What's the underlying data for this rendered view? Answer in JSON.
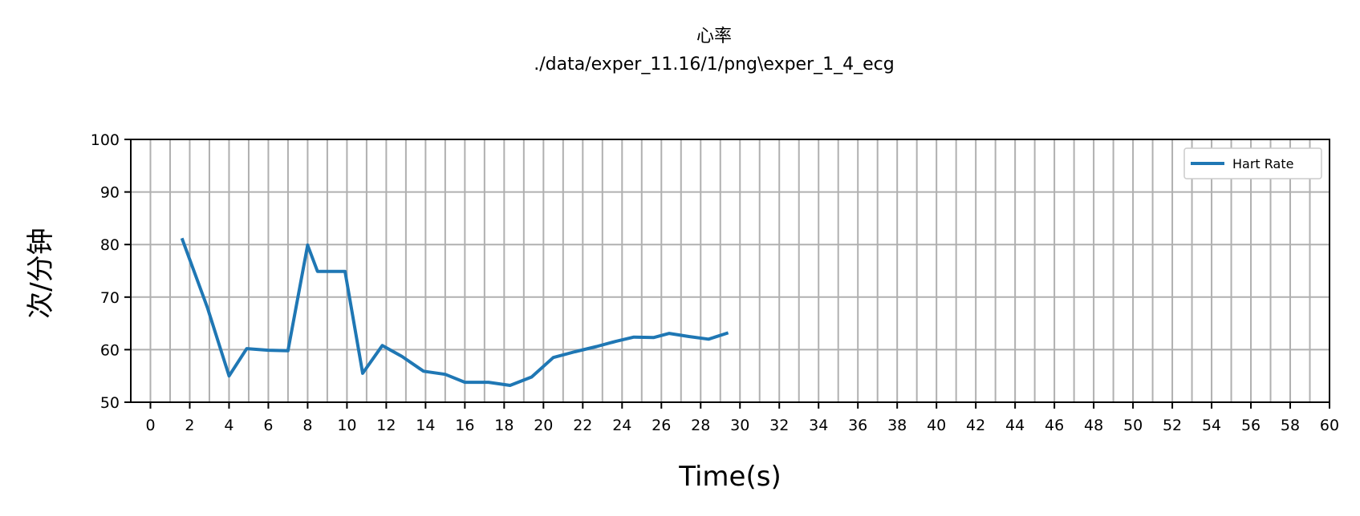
{
  "chart_data": {
    "type": "line",
    "title": "心率",
    "subtitle": "./data/exper_11.16/1/png\\exper_1_4_ecg",
    "xlabel": "Time(s)",
    "ylabel": "次/分钟",
    "xlim": [
      -1,
      60
    ],
    "ylim": [
      50,
      100
    ],
    "xticks": [
      0,
      2,
      4,
      6,
      8,
      10,
      12,
      14,
      16,
      18,
      20,
      22,
      24,
      26,
      28,
      30,
      32,
      34,
      36,
      38,
      40,
      42,
      44,
      46,
      48,
      50,
      52,
      54,
      56,
      58,
      60
    ],
    "yticks": [
      50,
      60,
      70,
      80,
      90,
      100
    ],
    "grid": true,
    "legend_position": "top-right",
    "series": [
      {
        "name": "Hart Rate",
        "color": "#1f77b4",
        "x": [
          1.6,
          2.9,
          4.0,
          4.9,
          6.0,
          7.0,
          8.0,
          8.5,
          9.9,
          10.8,
          11.8,
          12.8,
          13.9,
          15.0,
          16.0,
          17.2,
          18.3,
          19.4,
          20.5,
          21.6,
          22.7,
          23.7,
          24.6,
          25.6,
          26.4,
          27.4,
          28.4,
          29.4
        ],
        "y": [
          81.2,
          68.0,
          55.0,
          60.2,
          59.9,
          59.8,
          79.9,
          74.9,
          74.9,
          55.5,
          60.8,
          58.7,
          55.9,
          55.3,
          53.8,
          53.8,
          53.2,
          54.8,
          58.5,
          59.6,
          60.6,
          61.6,
          62.4,
          62.3,
          63.1,
          62.5,
          62.0,
          63.2
        ]
      }
    ]
  }
}
